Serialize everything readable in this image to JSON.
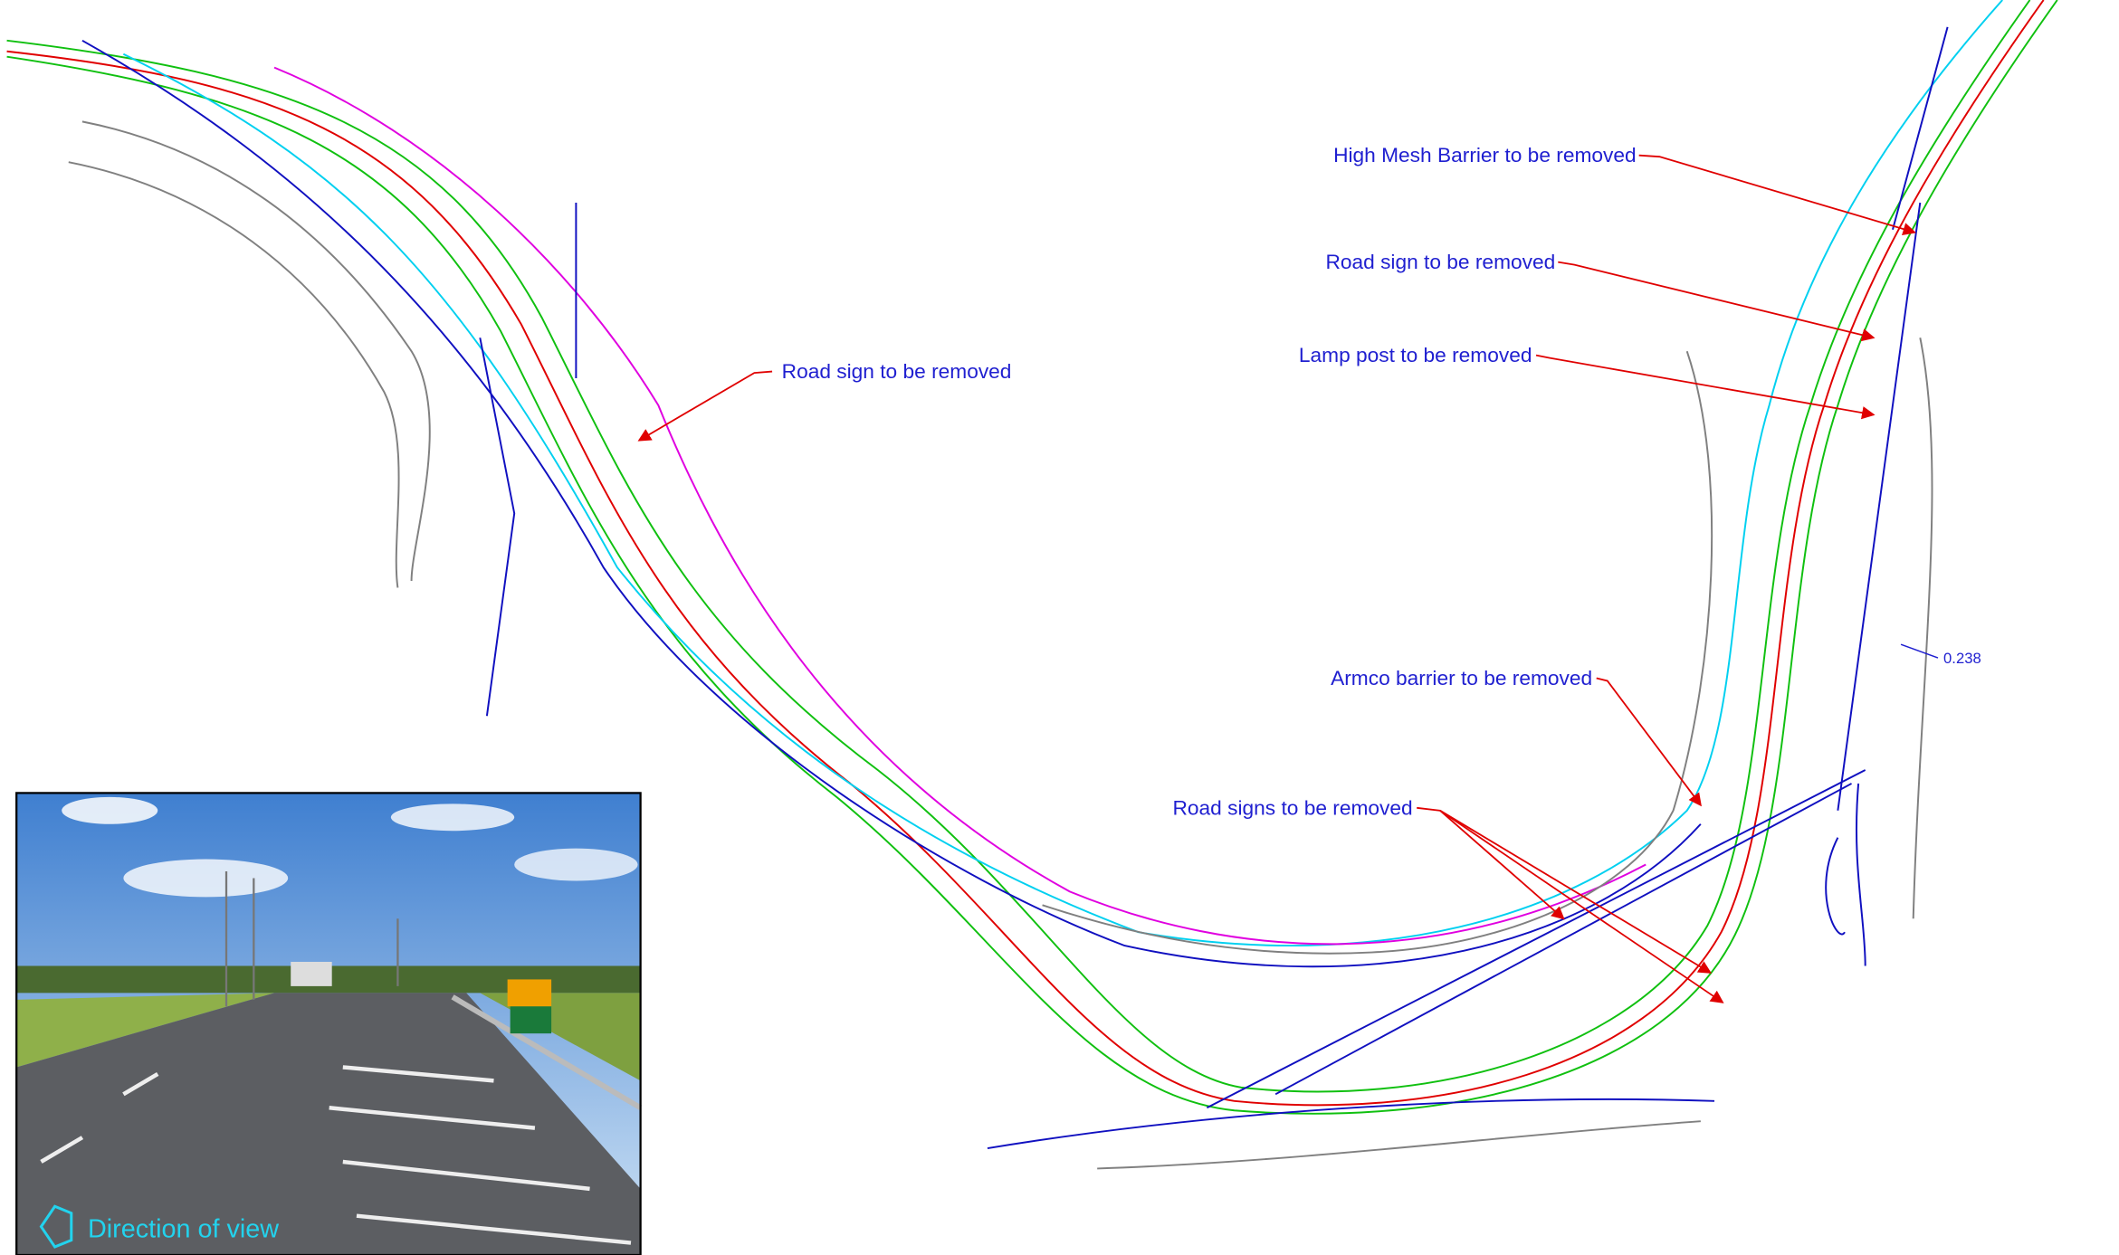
{
  "annotations": {
    "high_mesh_barrier": "High Mesh Barrier to be removed",
    "road_sign_left": "Road sign to be removed",
    "road_sign_right": "Road sign to be removed",
    "lamp_post": "Lamp post to be removed",
    "armco_barrier": "Armco barrier to be removed",
    "road_signs": "Road signs to be removed",
    "dimension": "0.238"
  },
  "inset": {
    "caption": "Direction of view"
  }
}
